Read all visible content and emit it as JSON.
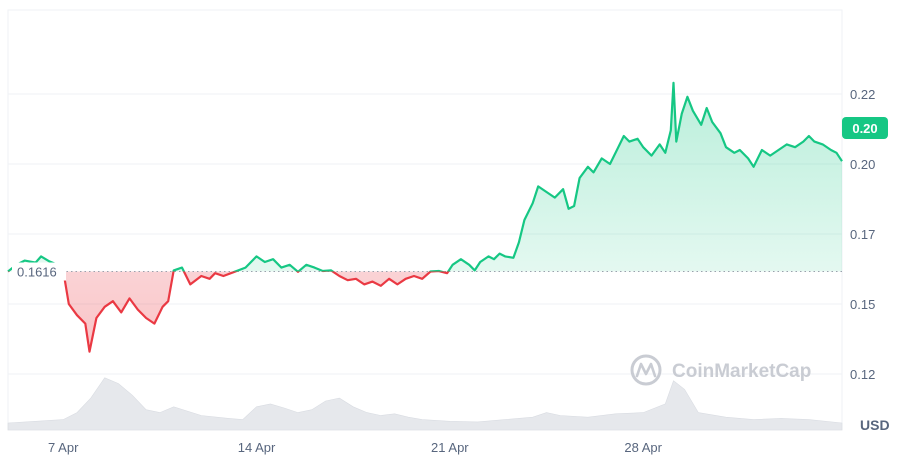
{
  "chart_data": {
    "type": "line",
    "currency": "USD",
    "baseline": 0.1616,
    "baseline_label": "0.1616",
    "current_price_label": "0.20",
    "y_ticks": [
      "0.22",
      "0.20",
      "0.17",
      "0.15",
      "0.12"
    ],
    "y_tick_values": [
      0.225,
      0.2,
      0.175,
      0.15,
      0.125
    ],
    "ylim": [
      0.105,
      0.255
    ],
    "x_ticks": [
      "7 Apr",
      "14 Apr",
      "21 Apr",
      "28 Apr"
    ],
    "x_tick_values": [
      7,
      14,
      21,
      28
    ],
    "xlim": [
      5,
      35.2
    ],
    "grid": true,
    "watermark": "CoinMarketCap",
    "colors": {
      "up": "#16c784",
      "down": "#ea3943",
      "grid": "#eff2f5",
      "text": "#58667e",
      "volume": "#e6e8ec",
      "watermark": "#c9ccd3"
    },
    "series": [
      {
        "values": [
          [
            5.0,
            0.1616
          ],
          [
            5.3,
            0.164
          ],
          [
            5.6,
            0.1655
          ],
          [
            6.0,
            0.1648
          ],
          [
            6.2,
            0.167
          ],
          [
            6.5,
            0.1652
          ],
          [
            6.8,
            0.164
          ],
          [
            7.0,
            0.162
          ],
          [
            7.2,
            0.15
          ],
          [
            7.5,
            0.146
          ],
          [
            7.8,
            0.143
          ],
          [
            7.95,
            0.133
          ],
          [
            8.2,
            0.145
          ],
          [
            8.5,
            0.149
          ],
          [
            8.8,
            0.151
          ],
          [
            9.1,
            0.147
          ],
          [
            9.4,
            0.152
          ],
          [
            9.7,
            0.148
          ],
          [
            10.0,
            0.145
          ],
          [
            10.3,
            0.143
          ],
          [
            10.6,
            0.149
          ],
          [
            10.8,
            0.151
          ],
          [
            11.0,
            0.162
          ],
          [
            11.3,
            0.163
          ],
          [
            11.6,
            0.157
          ],
          [
            12.0,
            0.16
          ],
          [
            12.3,
            0.159
          ],
          [
            12.5,
            0.161
          ],
          [
            12.8,
            0.16
          ],
          [
            13.2,
            0.1615
          ],
          [
            13.6,
            0.163
          ],
          [
            14.0,
            0.167
          ],
          [
            14.3,
            0.165
          ],
          [
            14.6,
            0.166
          ],
          [
            14.9,
            0.163
          ],
          [
            15.2,
            0.164
          ],
          [
            15.5,
            0.1615
          ],
          [
            15.8,
            0.164
          ],
          [
            16.1,
            0.163
          ],
          [
            16.4,
            0.1618
          ],
          [
            16.7,
            0.162
          ],
          [
            17.0,
            0.16
          ],
          [
            17.3,
            0.1585
          ],
          [
            17.6,
            0.159
          ],
          [
            17.9,
            0.157
          ],
          [
            18.2,
            0.158
          ],
          [
            18.5,
            0.1565
          ],
          [
            18.8,
            0.159
          ],
          [
            19.1,
            0.157
          ],
          [
            19.4,
            0.159
          ],
          [
            19.7,
            0.16
          ],
          [
            20.0,
            0.159
          ],
          [
            20.3,
            0.1616
          ],
          [
            20.6,
            0.1618
          ],
          [
            20.9,
            0.161
          ],
          [
            21.1,
            0.164
          ],
          [
            21.4,
            0.166
          ],
          [
            21.7,
            0.164
          ],
          [
            21.9,
            0.162
          ],
          [
            22.1,
            0.165
          ],
          [
            22.4,
            0.167
          ],
          [
            22.6,
            0.166
          ],
          [
            22.8,
            0.168
          ],
          [
            23.0,
            0.167
          ],
          [
            23.3,
            0.1665
          ],
          [
            23.5,
            0.172
          ],
          [
            23.7,
            0.18
          ],
          [
            24.0,
            0.186
          ],
          [
            24.2,
            0.192
          ],
          [
            24.5,
            0.19
          ],
          [
            24.8,
            0.188
          ],
          [
            25.1,
            0.191
          ],
          [
            25.3,
            0.184
          ],
          [
            25.5,
            0.185
          ],
          [
            25.7,
            0.195
          ],
          [
            26.0,
            0.199
          ],
          [
            26.2,
            0.197
          ],
          [
            26.5,
            0.202
          ],
          [
            26.8,
            0.2
          ],
          [
            27.1,
            0.206
          ],
          [
            27.3,
            0.21
          ],
          [
            27.5,
            0.208
          ],
          [
            27.8,
            0.209
          ],
          [
            28.0,
            0.206
          ],
          [
            28.3,
            0.203
          ],
          [
            28.6,
            0.207
          ],
          [
            28.8,
            0.204
          ],
          [
            29.0,
            0.212
          ],
          [
            29.1,
            0.229
          ],
          [
            29.2,
            0.208
          ],
          [
            29.4,
            0.218
          ],
          [
            29.6,
            0.224
          ],
          [
            29.8,
            0.219
          ],
          [
            30.1,
            0.214
          ],
          [
            30.3,
            0.22
          ],
          [
            30.5,
            0.215
          ],
          [
            30.8,
            0.211
          ],
          [
            31.0,
            0.206
          ],
          [
            31.3,
            0.204
          ],
          [
            31.5,
            0.205
          ],
          [
            31.8,
            0.202
          ],
          [
            32.0,
            0.199
          ],
          [
            32.3,
            0.205
          ],
          [
            32.6,
            0.203
          ],
          [
            32.9,
            0.205
          ],
          [
            33.2,
            0.207
          ],
          [
            33.5,
            0.206
          ],
          [
            33.8,
            0.208
          ],
          [
            34.0,
            0.21
          ],
          [
            34.2,
            0.208
          ],
          [
            34.5,
            0.207
          ],
          [
            34.8,
            0.205
          ],
          [
            35.0,
            0.204
          ],
          [
            35.2,
            0.201
          ]
        ]
      }
    ],
    "volume": [
      [
        5.0,
        0.12
      ],
      [
        6.0,
        0.15
      ],
      [
        7.0,
        0.18
      ],
      [
        7.5,
        0.3
      ],
      [
        8.0,
        0.55
      ],
      [
        8.5,
        0.9
      ],
      [
        9.0,
        0.8
      ],
      [
        9.5,
        0.6
      ],
      [
        10.0,
        0.35
      ],
      [
        10.5,
        0.3
      ],
      [
        11.0,
        0.4
      ],
      [
        12.0,
        0.25
      ],
      [
        13.0,
        0.2
      ],
      [
        13.5,
        0.18
      ],
      [
        14.0,
        0.4
      ],
      [
        14.5,
        0.45
      ],
      [
        15.0,
        0.38
      ],
      [
        15.5,
        0.3
      ],
      [
        16.0,
        0.35
      ],
      [
        16.5,
        0.5
      ],
      [
        17.0,
        0.55
      ],
      [
        17.5,
        0.4
      ],
      [
        18.0,
        0.3
      ],
      [
        18.5,
        0.25
      ],
      [
        19.0,
        0.28
      ],
      [
        19.5,
        0.22
      ],
      [
        20.0,
        0.18
      ],
      [
        21.0,
        0.15
      ],
      [
        22.0,
        0.14
      ],
      [
        23.0,
        0.18
      ],
      [
        24.0,
        0.22
      ],
      [
        24.5,
        0.3
      ],
      [
        25.0,
        0.25
      ],
      [
        26.0,
        0.22
      ],
      [
        27.0,
        0.28
      ],
      [
        28.0,
        0.3
      ],
      [
        28.8,
        0.45
      ],
      [
        29.1,
        0.85
      ],
      [
        29.5,
        0.7
      ],
      [
        30.0,
        0.3
      ],
      [
        31.0,
        0.22
      ],
      [
        32.0,
        0.18
      ],
      [
        33.0,
        0.2
      ],
      [
        34.0,
        0.18
      ],
      [
        35.2,
        0.12
      ]
    ]
  }
}
